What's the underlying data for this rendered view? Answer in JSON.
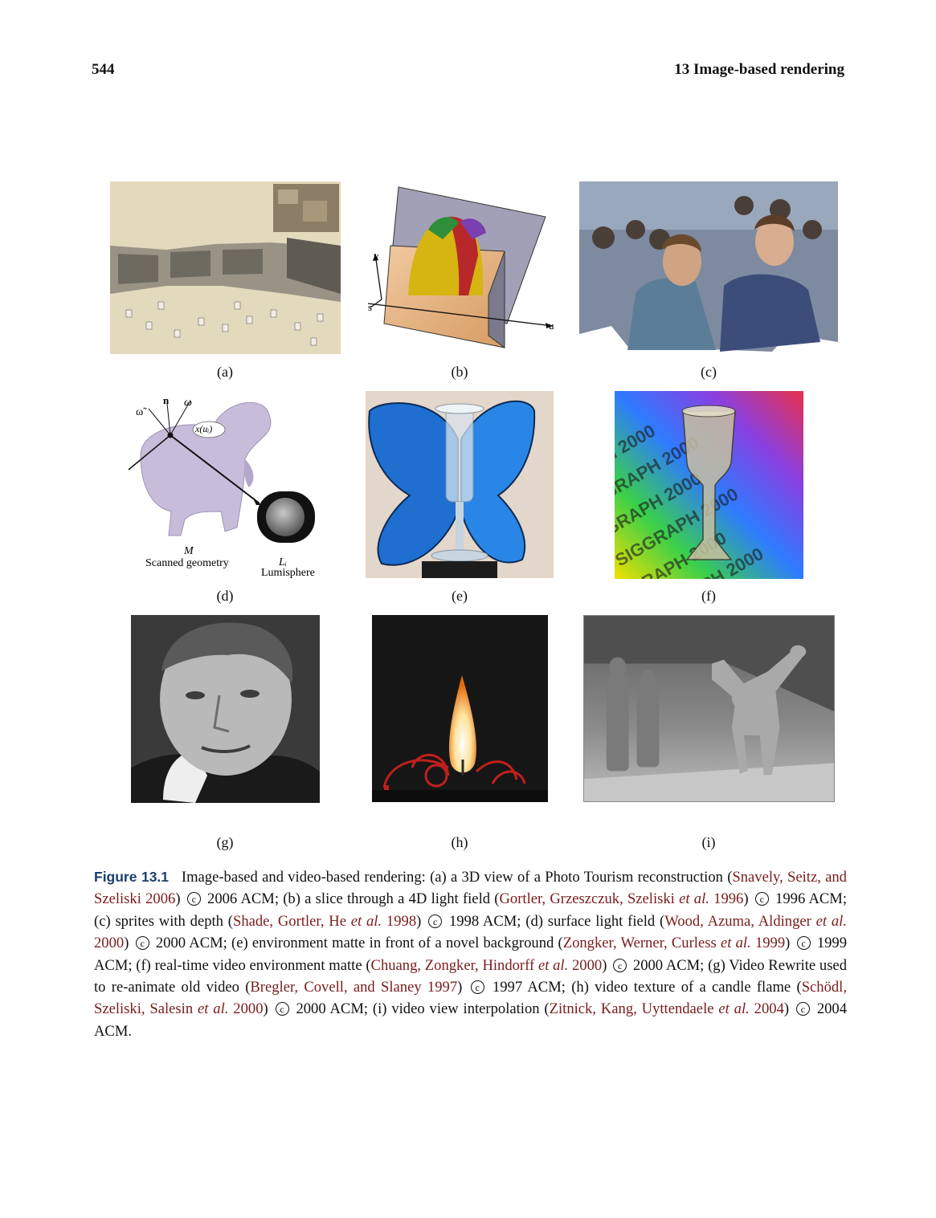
{
  "header": {
    "page_number": "544",
    "chapter": "13 Image-based rendering"
  },
  "panels": [
    {
      "label": "(a)"
    },
    {
      "label": "(b)"
    },
    {
      "label": "(c)"
    },
    {
      "label": "(d)"
    },
    {
      "label": "(e)"
    },
    {
      "label": "(f)"
    },
    {
      "label": "(g)"
    },
    {
      "label": "(h)"
    },
    {
      "label": "(i)"
    }
  ],
  "diagram_b": {
    "axis_v": "v",
    "axis_s": "s",
    "axis_u": "u"
  },
  "diagram_d": {
    "omega_tilde": "ω̃",
    "normal": "n",
    "omega": "ω",
    "point": "x(uᵢ)",
    "M": "M",
    "scanned": "Scanned geometry",
    "L": "Lᵢ",
    "lumisphere": "Lumisphere"
  },
  "image_f": {
    "watermark": "SIGGRAPH 2000"
  },
  "caption": {
    "figure_label": "Figure 13.1",
    "parts": [
      {
        "t": "Image-based and video-based rendering: (a) a 3D view of a Photo Tourism reconstruction ("
      },
      {
        "t": "Snavely, Seitz, and Szeliski 2006",
        "cite": true
      },
      {
        "t": ") "
      },
      {
        "copy": "c"
      },
      {
        "t": " 2006 ACM; (b) a slice through a 4D light field ("
      },
      {
        "t": "Gortler, Grzeszczuk, Szeliski ",
        "cite": true
      },
      {
        "t": "et al.",
        "cite": true,
        "em": true
      },
      {
        "t": " 1996",
        "cite": true
      },
      {
        "t": ") "
      },
      {
        "copy": "c"
      },
      {
        "t": " 1996 ACM; (c) sprites with depth ("
      },
      {
        "t": "Shade, Gortler, He ",
        "cite": true
      },
      {
        "t": "et al.",
        "cite": true,
        "em": true
      },
      {
        "t": " 1998",
        "cite": true
      },
      {
        "t": ") "
      },
      {
        "copy": "c"
      },
      {
        "t": " 1998 ACM; (d) surface light field ("
      },
      {
        "t": "Wood, Azuma, Aldinger ",
        "cite": true
      },
      {
        "t": "et al.",
        "cite": true,
        "em": true
      },
      {
        "t": " 2000",
        "cite": true
      },
      {
        "t": ") "
      },
      {
        "copy": "c"
      },
      {
        "t": " 2000 ACM; (e) environment matte in front of a novel background ("
      },
      {
        "t": "Zongker, Werner, Curless ",
        "cite": true
      },
      {
        "t": "et al.",
        "cite": true,
        "em": true
      },
      {
        "t": " 1999",
        "cite": true
      },
      {
        "t": ") "
      },
      {
        "copy": "c"
      },
      {
        "t": " 1999 ACM; (f) real-time video environment matte ("
      },
      {
        "t": "Chuang, Zongker, Hindorff ",
        "cite": true
      },
      {
        "t": "et al.",
        "cite": true,
        "em": true
      },
      {
        "t": " 2000",
        "cite": true
      },
      {
        "t": ") "
      },
      {
        "copy": "c"
      },
      {
        "t": " 2000 ACM; (g) Video Rewrite used to re-animate old video ("
      },
      {
        "t": "Bregler, Covell, and Slaney 1997",
        "cite": true
      },
      {
        "t": ") "
      },
      {
        "copy": "c"
      },
      {
        "t": " 1997 ACM; (h) video texture of a candle flame ("
      },
      {
        "t": "Schödl, Szeliski, Salesin ",
        "cite": true
      },
      {
        "t": "et al.",
        "cite": true,
        "em": true
      },
      {
        "t": " 2000",
        "cite": true
      },
      {
        "t": ") "
      },
      {
        "copy": "c"
      },
      {
        "t": " 2000 ACM; (i) video view interpolation ("
      },
      {
        "t": "Zitnick, Kang, Uyttendaele ",
        "cite": true
      },
      {
        "t": "et al.",
        "cite": true,
        "em": true
      },
      {
        "t": " 2004",
        "cite": true
      },
      {
        "t": ") "
      },
      {
        "copy": "c"
      },
      {
        "t": " 2004 ACM."
      }
    ]
  }
}
